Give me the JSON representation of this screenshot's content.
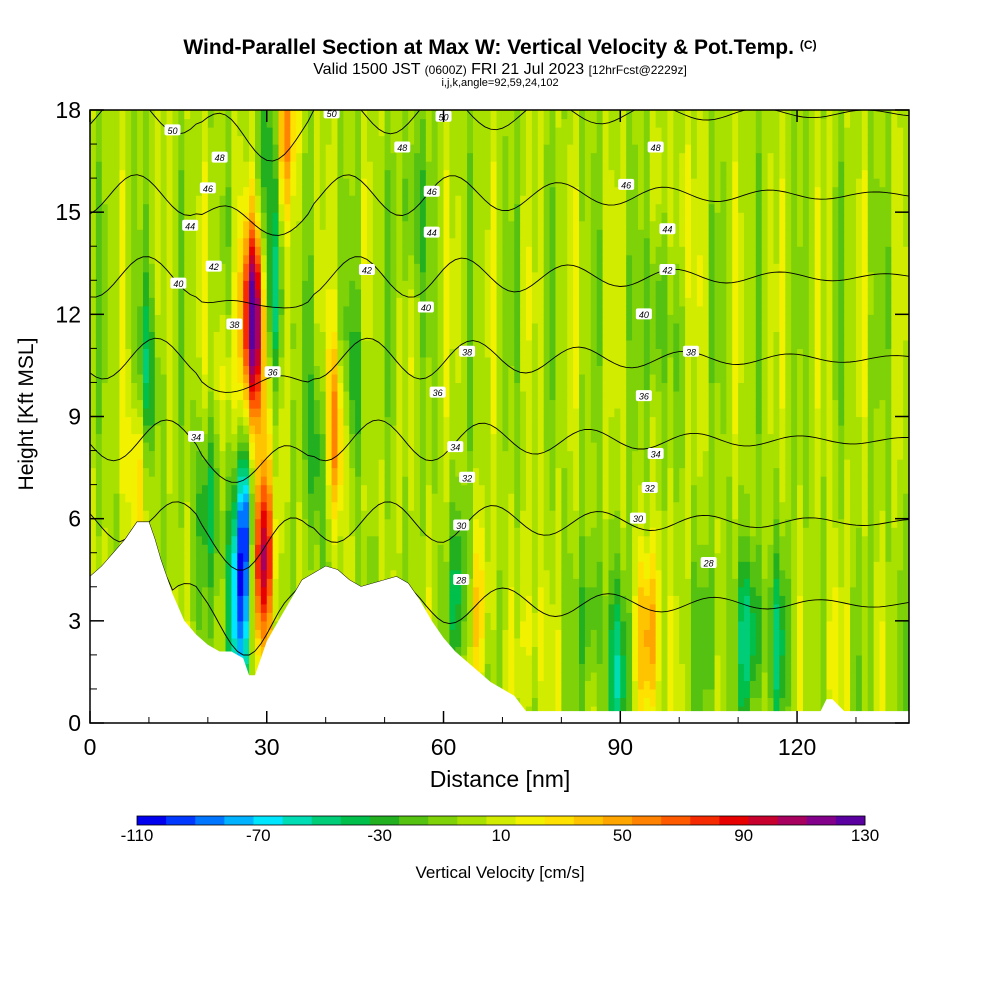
{
  "title": {
    "main": "Wind-Parallel Section at Max W: Vertical Velocity & Pot.Temp.",
    "copyright": "(C)",
    "valid_prefix": "Valid 1500 JST",
    "valid_utc": "(0600Z)",
    "valid_date": "FRI 21 Jul 2023",
    "forecast": "[12hrFcst@2229z]",
    "params": "i,j,k,angle=92,59,24,102"
  },
  "chart_data": {
    "type": "heatmap",
    "title": "Wind-Parallel Section at Max W: Vertical Velocity & Pot.Temp.",
    "xlabel": "Distance [nm]",
    "ylabel": "Height [Kft MSL]",
    "xlim": [
      0,
      139
    ],
    "ylim": [
      0,
      18
    ],
    "xticks": [
      0,
      30,
      60,
      90,
      120
    ],
    "yticks": [
      0,
      3,
      6,
      9,
      12,
      15,
      18
    ],
    "colorbar": {
      "label": "Vertical Velocity [cm/s]",
      "tick_labels": [
        -110,
        -70,
        -30,
        10,
        50,
        90,
        130
      ],
      "levels": [
        -110,
        -100,
        -90,
        -80,
        -70,
        -60,
        -50,
        -40,
        -30,
        -20,
        -10,
        0,
        10,
        20,
        30,
        40,
        50,
        60,
        70,
        80,
        90,
        100,
        110,
        120,
        130
      ],
      "colors": [
        "#0000ee",
        "#0038ff",
        "#0075ff",
        "#00b2ff",
        "#00e6ff",
        "#00ddb5",
        "#00cd78",
        "#00bf4a",
        "#22b021",
        "#55c212",
        "#7fd208",
        "#a8e000",
        "#d2ec00",
        "#f2f200",
        "#ffe100",
        "#ffc400",
        "#ffa500",
        "#ff8200",
        "#ff5a00",
        "#f52a00",
        "#e60000",
        "#c8002e",
        "#a7005f",
        "#82008a",
        "#5a00a0"
      ]
    },
    "background_velocity_cm_s": 5,
    "velocity_features": [
      {
        "x": 28,
        "y": 12.2,
        "value": 130
      },
      {
        "x": 29,
        "y": 5.0,
        "value": 125
      },
      {
        "x": 26.5,
        "y": 5.8,
        "value": -95
      },
      {
        "x": 25,
        "y": 3.0,
        "value": -65
      },
      {
        "x": 28.5,
        "y": 9.5,
        "value": 45
      },
      {
        "x": 31,
        "y": 12.5,
        "value": -50
      },
      {
        "x": 31,
        "y": 17.0,
        "value": -40
      },
      {
        "x": 33,
        "y": 17.5,
        "value": 70
      },
      {
        "x": 41.5,
        "y": 8.5,
        "value": 70
      },
      {
        "x": 39,
        "y": 8.0,
        "value": -40
      },
      {
        "x": 10,
        "y": 10.0,
        "value": -35
      },
      {
        "x": 8,
        "y": 7.5,
        "value": 40
      },
      {
        "x": 20,
        "y": 6.5,
        "value": -35
      },
      {
        "x": 23,
        "y": 10.0,
        "value": 30
      },
      {
        "x": 45,
        "y": 10.0,
        "value": -25
      },
      {
        "x": 63,
        "y": 4.0,
        "value": -35
      },
      {
        "x": 66,
        "y": 3.5,
        "value": 40
      },
      {
        "x": 75,
        "y": 2.5,
        "value": 30
      },
      {
        "x": 85,
        "y": 3.0,
        "value": -25
      },
      {
        "x": 90,
        "y": 1.5,
        "value": -40
      },
      {
        "x": 95,
        "y": 2.5,
        "value": 65
      },
      {
        "x": 96,
        "y": 12.0,
        "value": -30
      },
      {
        "x": 112,
        "y": 2.5,
        "value": -50
      },
      {
        "x": 117,
        "y": 2.5,
        "value": -30
      },
      {
        "x": 105,
        "y": 2.5,
        "value": -20
      },
      {
        "x": 126,
        "y": 2.0,
        "value": 20
      },
      {
        "x": 100,
        "y": 15.0,
        "value": 25
      },
      {
        "x": 55,
        "y": 15.0,
        "value": -25
      }
    ],
    "terrain": {
      "x": [
        0,
        2,
        4,
        6,
        8,
        10,
        11,
        12,
        14,
        16,
        18,
        20,
        22,
        24,
        26,
        27,
        28,
        29,
        30,
        32,
        34,
        36,
        40,
        42,
        44,
        46,
        48,
        50,
        52,
        54,
        56,
        58,
        60,
        62,
        64,
        66,
        68,
        70,
        72,
        74,
        80,
        90,
        100,
        110,
        124,
        125,
        126,
        128,
        130,
        139
      ],
      "ft": [
        4.3,
        4.6,
        5.0,
        5.4,
        5.9,
        5.9,
        5.4,
        4.8,
        3.8,
        3.0,
        2.6,
        2.3,
        2.1,
        2.1,
        1.9,
        1.4,
        1.4,
        1.9,
        2.4,
        3.0,
        3.6,
        4.2,
        4.6,
        4.5,
        4.2,
        4.0,
        4.1,
        4.2,
        4.3,
        4.1,
        3.6,
        3.0,
        2.5,
        2.1,
        1.8,
        1.5,
        1.2,
        1.0,
        0.8,
        0.35,
        0.35,
        0.35,
        0.35,
        0.35,
        0.35,
        0.7,
        0.7,
        0.35,
        0.35,
        0.35
      ]
    },
    "pot_temp_contours": {
      "levels": [
        28,
        30,
        32,
        34,
        36,
        38,
        40,
        42,
        44,
        46,
        48,
        50
      ],
      "labels": [
        {
          "text": "50",
          "x": 14,
          "y": 17.4
        },
        {
          "text": "48",
          "x": 22,
          "y": 16.6
        },
        {
          "text": "46",
          "x": 20,
          "y": 15.7
        },
        {
          "text": "44",
          "x": 17,
          "y": 14.6
        },
        {
          "text": "42",
          "x": 21,
          "y": 13.4
        },
        {
          "text": "40",
          "x": 15,
          "y": 12.9
        },
        {
          "text": "38",
          "x": 24.5,
          "y": 11.7
        },
        {
          "text": "36",
          "x": 31,
          "y": 10.3
        },
        {
          "text": "34",
          "x": 18,
          "y": 8.4
        },
        {
          "text": "50",
          "x": 41,
          "y": 17.9
        },
        {
          "text": "50",
          "x": 60,
          "y": 17.8
        },
        {
          "text": "48",
          "x": 53,
          "y": 16.9
        },
        {
          "text": "46",
          "x": 58,
          "y": 15.6
        },
        {
          "text": "44",
          "x": 58,
          "y": 14.4
        },
        {
          "text": "42",
          "x": 47,
          "y": 13.3
        },
        {
          "text": "40",
          "x": 57,
          "y": 12.2
        },
        {
          "text": "38",
          "x": 64,
          "y": 10.9
        },
        {
          "text": "36",
          "x": 59,
          "y": 9.7
        },
        {
          "text": "34",
          "x": 62,
          "y": 8.1
        },
        {
          "text": "32",
          "x": 64,
          "y": 7.2
        },
        {
          "text": "30",
          "x": 63,
          "y": 5.8
        },
        {
          "text": "28",
          "x": 63,
          "y": 4.2
        },
        {
          "text": "48",
          "x": 96,
          "y": 16.9
        },
        {
          "text": "46",
          "x": 91,
          "y": 15.8
        },
        {
          "text": "44",
          "x": 98,
          "y": 14.5
        },
        {
          "text": "42",
          "x": 98,
          "y": 13.3
        },
        {
          "text": "40",
          "x": 94,
          "y": 12.0
        },
        {
          "text": "38",
          "x": 102,
          "y": 10.9
        },
        {
          "text": "36",
          "x": 94,
          "y": 9.6
        },
        {
          "text": "34",
          "x": 96,
          "y": 7.9
        },
        {
          "text": "32",
          "x": 95,
          "y": 6.9
        },
        {
          "text": "30",
          "x": 93,
          "y": 6.0
        },
        {
          "text": "28",
          "x": 105,
          "y": 4.7
        }
      ]
    },
    "grid": false
  }
}
